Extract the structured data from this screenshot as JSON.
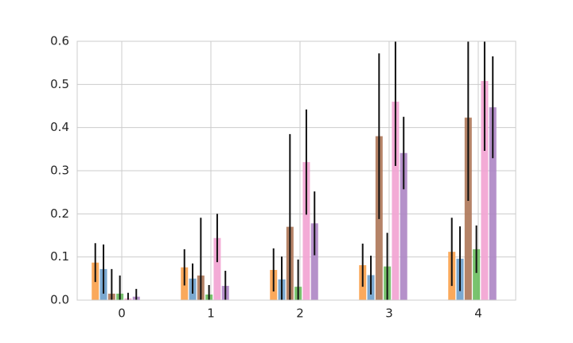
{
  "chart_data": {
    "type": "bar",
    "x": [
      0,
      1,
      2,
      3,
      4
    ],
    "xlim": [
      -0.5,
      4.42
    ],
    "xticks": [
      0,
      1,
      2,
      3,
      4
    ],
    "ylim": [
      0,
      0.6
    ],
    "yticks": [
      {
        "value": 0,
        "label": "0.0"
      },
      0.1,
      0.2,
      0.3,
      0.4,
      0.5,
      0.6
    ],
    "grid": true,
    "series": [
      {
        "color": "#f9a04a",
        "values": [
          0.087,
          0.076,
          0.07,
          0.081,
          0.112
        ],
        "errors": [
          0.045,
          0.042,
          0.05,
          0.05,
          0.079
        ]
      },
      {
        "color": "#6b9ecb",
        "values": [
          0.072,
          0.05,
          0.048,
          0.058,
          0.096
        ],
        "errors": [
          0.057,
          0.035,
          0.053,
          0.045,
          0.075
        ]
      },
      {
        "color": "#ad7656",
        "values": [
          0.015,
          0.057,
          0.17,
          0.38,
          0.423
        ],
        "errors": [
          0.057,
          0.134,
          0.215,
          0.192,
          0.193
        ]
      },
      {
        "color": "#6abd5e",
        "values": [
          0.015,
          0.013,
          0.031,
          0.078,
          0.118
        ],
        "errors": [
          0.042,
          0.022,
          0.063,
          0.078,
          0.055
        ]
      },
      {
        "color": "#f2a2d2",
        "values": [
          0.004,
          0.144,
          0.32,
          0.46,
          0.508
        ],
        "errors": [
          0.013,
          0.056,
          0.122,
          0.149,
          0.162
        ]
      },
      {
        "color": "#ad85c4",
        "values": [
          0.008,
          0.033,
          0.178,
          0.341,
          0.447
        ],
        "errors": [
          0.018,
          0.035,
          0.074,
          0.084,
          0.118
        ]
      }
    ]
  }
}
